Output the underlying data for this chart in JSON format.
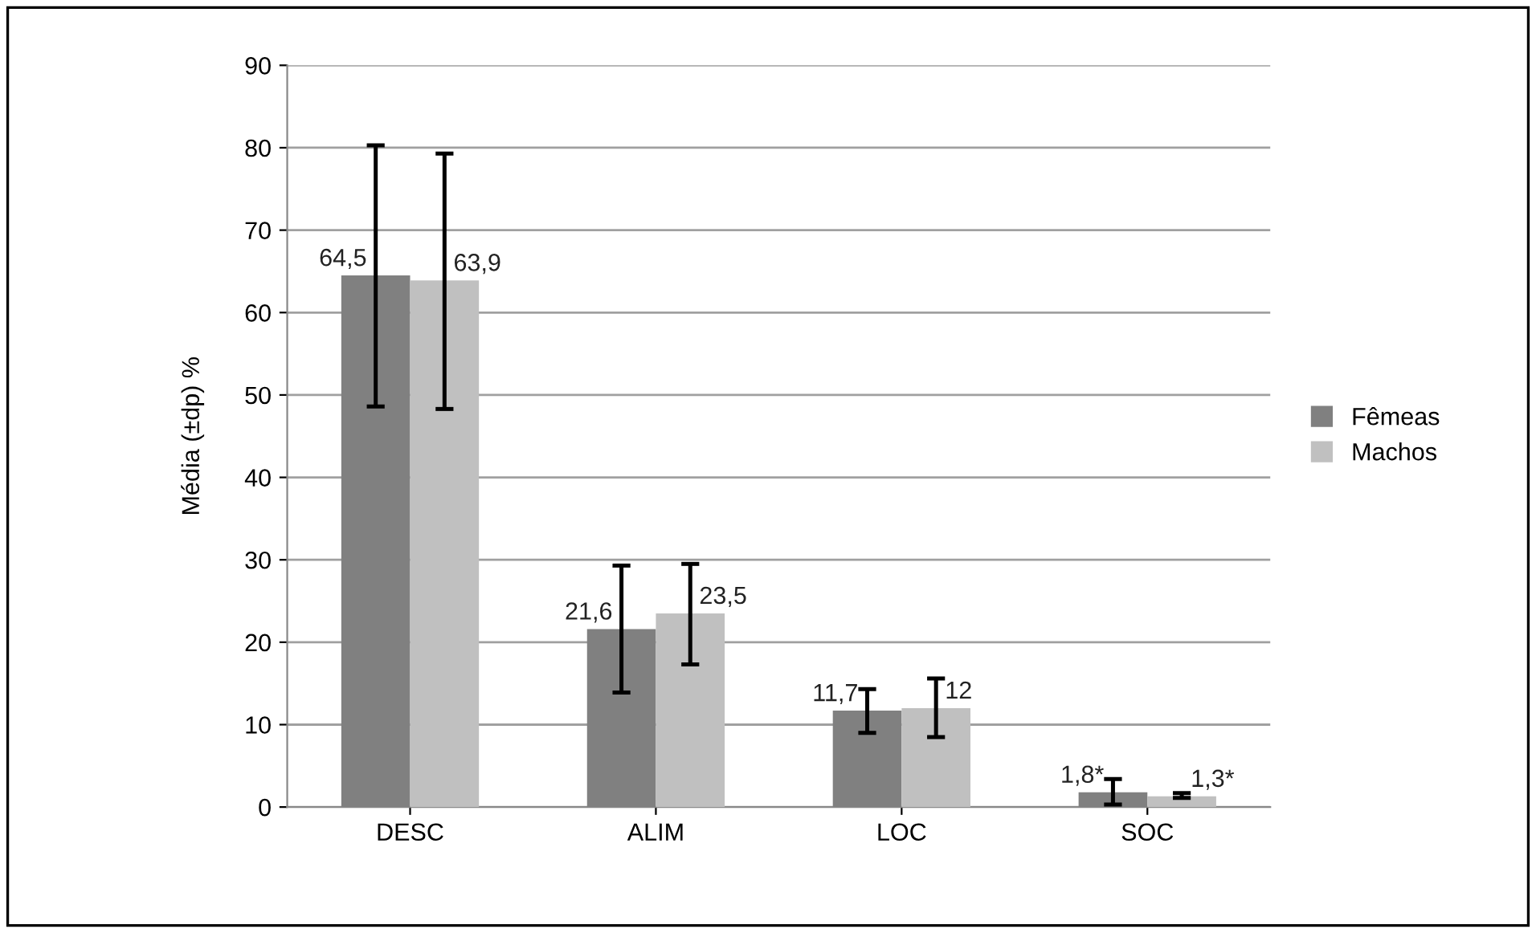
{
  "chart_data": {
    "type": "bar",
    "ylabel": "Média (±dp) %",
    "categories": [
      "DESC",
      "ALIM",
      "LOC",
      "SOC"
    ],
    "series": [
      {
        "name": "Fêmeas",
        "color": "#808080",
        "values": [
          64.5,
          21.6,
          11.7,
          1.8
        ],
        "value_labels": [
          "64,5",
          "21,6",
          "11,7",
          "1,8*"
        ],
        "errors": [
          [
            48.6,
            80.3
          ],
          [
            13.9,
            29.3
          ],
          [
            9.0,
            14.3
          ],
          [
            0.3,
            3.4
          ]
        ]
      },
      {
        "name": "Machos",
        "color": "#c0c0c0",
        "values": [
          63.9,
          23.5,
          12,
          1.3
        ],
        "value_labels": [
          "63,9",
          "23,5",
          "12",
          "1,3*"
        ],
        "errors": [
          [
            48.3,
            79.3
          ],
          [
            17.3,
            29.5
          ],
          [
            8.5,
            15.6
          ],
          [
            1.1,
            1.7
          ]
        ]
      }
    ],
    "ylim": [
      0,
      90
    ],
    "yticks": [
      0,
      10,
      20,
      30,
      40,
      50,
      60,
      70,
      80,
      90
    ],
    "grid": "y",
    "legend": "right"
  }
}
